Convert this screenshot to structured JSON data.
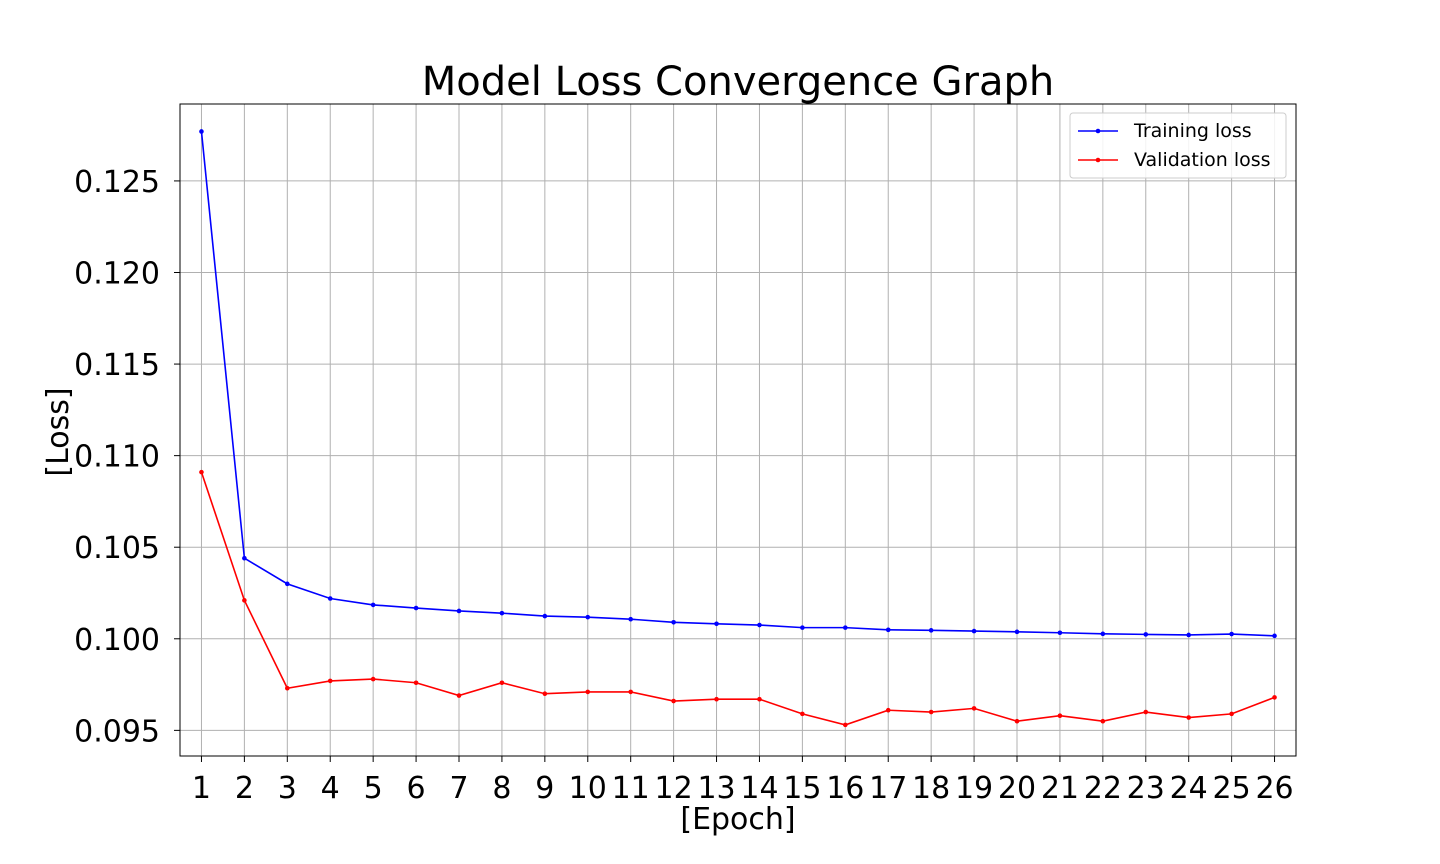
{
  "chart_data": {
    "type": "line",
    "title": "Model Loss Convergence Graph",
    "xlabel": "[Epoch]",
    "ylabel": "[Loss]",
    "x": [
      1,
      2,
      3,
      4,
      5,
      6,
      7,
      8,
      9,
      10,
      11,
      12,
      13,
      14,
      15,
      16,
      17,
      18,
      19,
      20,
      21,
      22,
      23,
      24,
      25,
      26
    ],
    "series": [
      {
        "name": "Training loss",
        "color": "#0000ff",
        "values": [
          0.1277,
          0.1044,
          0.103,
          0.1022,
          0.10185,
          0.10168,
          0.10152,
          0.1014,
          0.10124,
          0.10118,
          0.10107,
          0.1009,
          0.10082,
          0.10075,
          0.10061,
          0.10061,
          0.10049,
          0.10046,
          0.10042,
          0.10038,
          0.10033,
          0.10027,
          0.10024,
          0.10021,
          0.10026,
          0.10016
        ]
      },
      {
        "name": "Validation loss",
        "color": "#ff0000",
        "values": [
          0.1091,
          0.1021,
          0.0973,
          0.0977,
          0.0978,
          0.0976,
          0.0969,
          0.0976,
          0.097,
          0.0971,
          0.0971,
          0.0966,
          0.0967,
          0.0967,
          0.0959,
          0.0953,
          0.0961,
          0.096,
          0.0962,
          0.0955,
          0.0958,
          0.0955,
          0.096,
          0.0957,
          0.0959,
          0.0968
        ]
      }
    ],
    "yticks": [
      "0.095",
      "0.100",
      "0.105",
      "0.110",
      "0.115",
      "0.120",
      "0.125"
    ],
    "xticks": [
      "1",
      "2",
      "3",
      "4",
      "5",
      "6",
      "7",
      "8",
      "9",
      "10",
      "11",
      "12",
      "13",
      "14",
      "15",
      "16",
      "17",
      "18",
      "19",
      "20",
      "21",
      "22",
      "23",
      "24",
      "25",
      "26"
    ],
    "xlim": [
      0.5,
      26.5
    ],
    "ylim": [
      0.0936,
      0.1292
    ],
    "grid": true,
    "legend": "top-right"
  }
}
